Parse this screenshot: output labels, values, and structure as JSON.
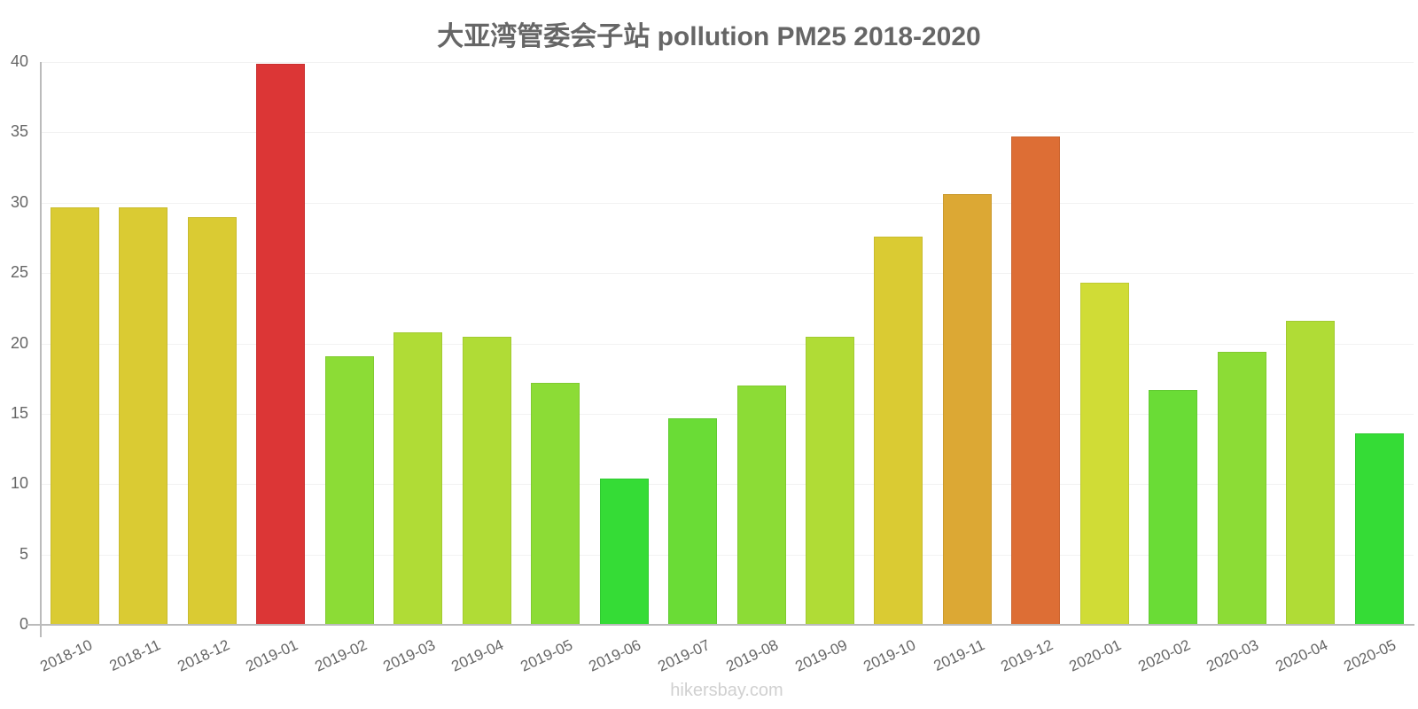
{
  "header": {
    "title": "大亚湾管委会子站 pollution PM25 2018-2020"
  },
  "watermark": "hikersbay.com",
  "y_ticks": [
    "0",
    "5",
    "10",
    "15",
    "20",
    "25",
    "30",
    "35",
    "40"
  ],
  "colors": {
    "red": "#dc3636",
    "orange": "#dd6e35",
    "amber": "#dca834",
    "yellow": "#dacb33",
    "lime_yellow": "#d0dc36",
    "yellow_green": "#b0dc36",
    "light_green": "#8cdc36",
    "green": "#6adc36",
    "bright_green": "#35dc36"
  },
  "chart_data": {
    "type": "bar",
    "title": "大亚湾管委会子站 pollution PM25 2018-2020",
    "xlabel": "",
    "ylabel": "",
    "ylim": [
      0,
      40
    ],
    "y_ticks": [
      0,
      5,
      10,
      15,
      20,
      25,
      30,
      35,
      40
    ],
    "grid": true,
    "legend": null,
    "categories": [
      "2018-10",
      "2018-11",
      "2018-12",
      "2019-01",
      "2019-02",
      "2019-03",
      "2019-04",
      "2019-05",
      "2019-06",
      "2019-07",
      "2019-08",
      "2019-09",
      "2019-10",
      "2019-11",
      "2019-12",
      "2020-01",
      "2020-02",
      "2020-03",
      "2020-04",
      "2020-05"
    ],
    "values": [
      29.7,
      29.7,
      29.0,
      39.9,
      19.1,
      20.8,
      20.5,
      17.2,
      10.4,
      14.7,
      17.0,
      20.5,
      27.6,
      30.6,
      34.7,
      24.3,
      16.7,
      19.4,
      21.6,
      13.6
    ],
    "bar_colors": [
      "#dacb33",
      "#dacb33",
      "#dacb33",
      "#dc3636",
      "#8cdc36",
      "#b0dc36",
      "#b0dc36",
      "#8cdc36",
      "#35dc36",
      "#6adc36",
      "#8cdc36",
      "#b0dc36",
      "#dacb33",
      "#dca834",
      "#dd6e35",
      "#d0dc36",
      "#6adc36",
      "#8cdc36",
      "#b0dc36",
      "#35dc36"
    ]
  }
}
